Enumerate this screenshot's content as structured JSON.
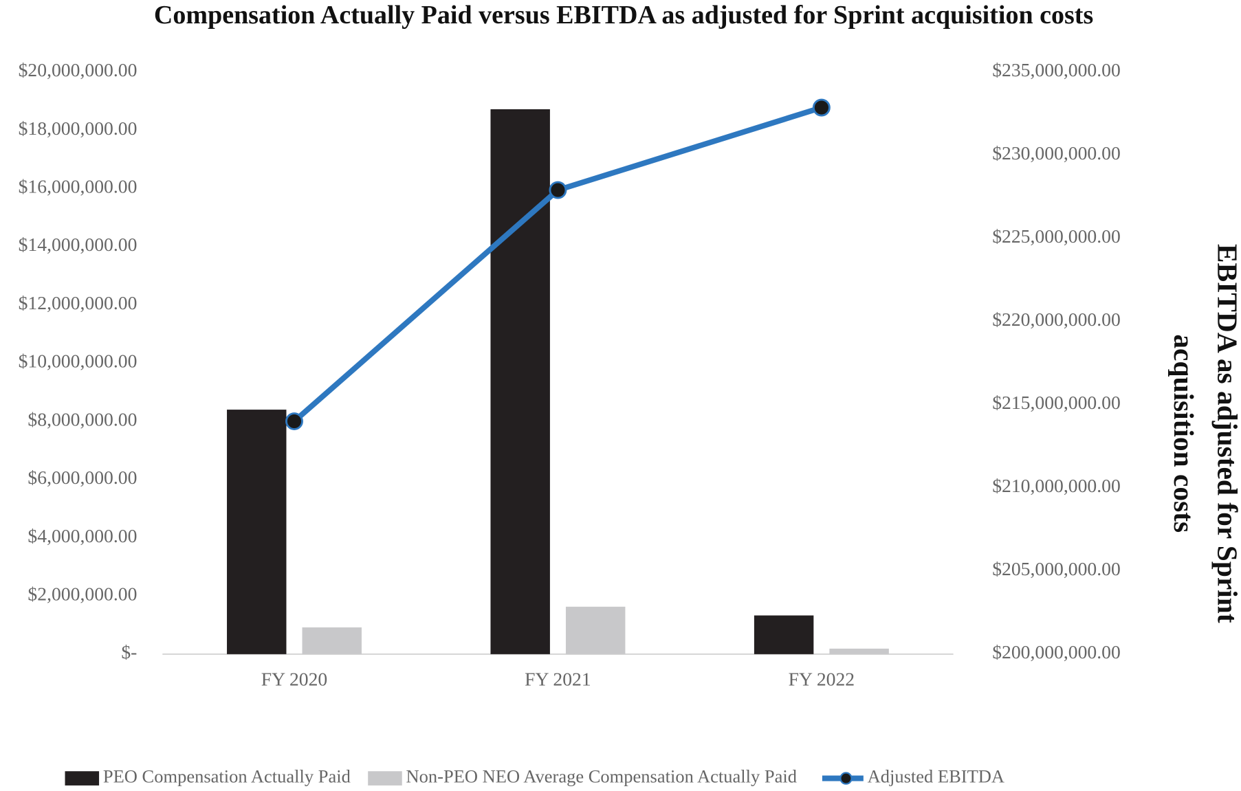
{
  "chart_data": {
    "type": "bar",
    "title": "Compensation Actually Paid versus EBITDA as adjusted for Sprint acquisition costs",
    "y2label": [
      "EBITDA as adjusted for Sprint",
      "acquisition costs"
    ],
    "categories": [
      "FY 2020",
      "FY 2021",
      "FY 2022"
    ],
    "series": [
      {
        "name": "PEO Compensation Actually Paid",
        "type": "bar",
        "color": "#231f20",
        "values": [
          8400000,
          18720000,
          1330000
        ]
      },
      {
        "name": "Non-PEO NEO Average Compensation Actually Paid",
        "type": "bar",
        "color": "#c8c8ca",
        "values": [
          920000,
          1630000,
          190000
        ]
      },
      {
        "name": "Adjusted  EBITDA",
        "type": "line",
        "axis": "y2",
        "color": "#2e78c0",
        "marker_color": "#1a1a1a",
        "values": [
          214000000,
          227900000,
          232860000
        ]
      }
    ],
    "ylim": [
      0,
      20000000
    ],
    "yticks": [
      {
        "value": 0,
        "label": "$-"
      },
      {
        "value": 2000000,
        "label": "$2,000,000.00"
      },
      {
        "value": 4000000,
        "label": "$4,000,000.00"
      },
      {
        "value": 6000000,
        "label": "$6,000,000.00"
      },
      {
        "value": 8000000,
        "label": "$8,000,000.00"
      },
      {
        "value": 10000000,
        "label": "$10,000,000.00"
      },
      {
        "value": 12000000,
        "label": "$12,000,000.00"
      },
      {
        "value": 14000000,
        "label": "$14,000,000.00"
      },
      {
        "value": 16000000,
        "label": "$16,000,000.00"
      },
      {
        "value": 18000000,
        "label": "$18,000,000.00"
      },
      {
        "value": 20000000,
        "label": "$20,000,000.00"
      }
    ],
    "y2lim": [
      200000000,
      235000000
    ],
    "y2ticks": [
      {
        "value": 200000000,
        "label": "$200,000,000.00"
      },
      {
        "value": 205000000,
        "label": "$205,000,000.00"
      },
      {
        "value": 210000000,
        "label": "$210,000,000.00"
      },
      {
        "value": 215000000,
        "label": "$215,000,000.00"
      },
      {
        "value": 220000000,
        "label": "$220,000,000.00"
      },
      {
        "value": 225000000,
        "label": "$225,000,000.00"
      },
      {
        "value": 230000000,
        "label": "$230,000,000.00"
      },
      {
        "value": 235000000,
        "label": "$235,000,000.00"
      }
    ],
    "grid": false,
    "legend": "bottom"
  }
}
